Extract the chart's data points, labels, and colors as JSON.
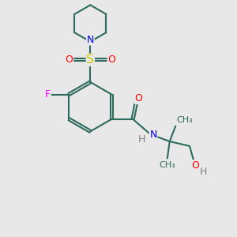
{
  "bg_color": "#e8e8e8",
  "bond_color": "#2d6b5e",
  "bond_width": 1.5,
  "atom_colors": {
    "N": "#0000ff",
    "O": "#ff0000",
    "S": "#cccc00",
    "F": "#ff00ff",
    "H": "#808080",
    "C": "#2d6b5e"
  },
  "font_size": 9
}
